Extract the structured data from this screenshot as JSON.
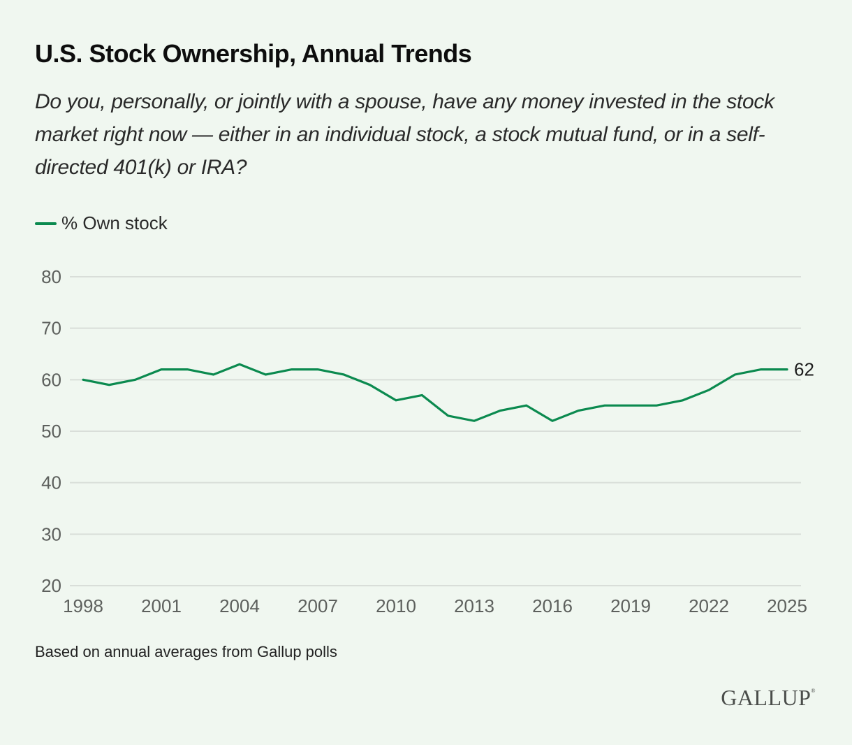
{
  "header": {
    "title": "U.S. Stock Ownership, Annual Trends",
    "subtitle": "Do you, personally, or jointly with a spouse, have any money invested in the stock market right now — either in an individual stock, a stock mutual fund, or in a self-directed 401(k) or IRA?"
  },
  "legend": {
    "label": "% Own stock",
    "color": "#0b8a4f"
  },
  "footer": {
    "note": "Based on annual averages from Gallup polls",
    "logo": "GALLUP",
    "logo_mark": "®"
  },
  "chart_data": {
    "type": "line",
    "title": "U.S. Stock Ownership, Annual Trends",
    "xlabel": "",
    "ylabel": "",
    "ylim": [
      20,
      80
    ],
    "yticks": [
      20,
      30,
      40,
      50,
      60,
      70,
      80
    ],
    "xlim": [
      1998,
      2025
    ],
    "xticks": [
      1998,
      2001,
      2004,
      2007,
      2010,
      2013,
      2016,
      2019,
      2022,
      2025
    ],
    "grid": true,
    "legend_position": "top-left",
    "x": [
      1998,
      1999,
      2000,
      2001,
      2002,
      2003,
      2004,
      2005,
      2006,
      2007,
      2008,
      2009,
      2010,
      2011,
      2012,
      2013,
      2014,
      2015,
      2016,
      2017,
      2018,
      2019,
      2020,
      2021,
      2022,
      2023,
      2024,
      2025
    ],
    "series": [
      {
        "name": "% Own stock",
        "color": "#0b8a4f",
        "values": [
          60,
          59,
          60,
          62,
          62,
          61,
          63,
          61,
          62,
          62,
          61,
          59,
          56,
          57,
          53,
          52,
          54,
          55,
          52,
          54,
          55,
          55,
          55,
          56,
          58,
          61,
          62,
          62
        ]
      }
    ],
    "annotations": [
      {
        "x": 2025,
        "label": "62"
      }
    ],
    "colors": {
      "gridline": "#d9ded9",
      "tick_text": "#5d605d",
      "background": "#f0f7f0"
    }
  }
}
